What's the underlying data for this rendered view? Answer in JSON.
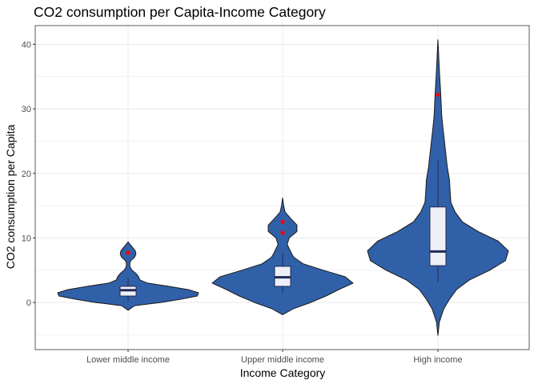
{
  "chart_data": {
    "type": "violin",
    "title": "CO2 consumption per Capita-Income Category",
    "xlabel": "Income Category",
    "ylabel": "CO2 consumption per Capita",
    "ylim": [
      -7.3,
      42.9
    ],
    "yticks": [
      0,
      10,
      20,
      30,
      40
    ],
    "grid": true,
    "categories": [
      "Lower middle income",
      "Upper middle income",
      "High income"
    ],
    "series": [
      {
        "category": "Lower middle income",
        "violin_range": [
          -1.2,
          9.4
        ],
        "density_profile": [
          [
            -1.2,
            0.0
          ],
          [
            -0.5,
            0.5
          ],
          [
            0.0,
            2.5
          ],
          [
            0.5,
            4.0
          ],
          [
            1.0,
            5.3
          ],
          [
            1.5,
            5.4
          ],
          [
            2.0,
            4.6
          ],
          [
            2.5,
            3.1
          ],
          [
            3.0,
            1.5
          ],
          [
            3.5,
            0.9
          ],
          [
            4.0,
            0.8
          ],
          [
            4.5,
            0.6
          ],
          [
            5.0,
            0.3
          ],
          [
            5.5,
            0.15
          ],
          [
            6.0,
            0.12
          ],
          [
            6.5,
            0.2
          ],
          [
            7.0,
            0.5
          ],
          [
            7.5,
            0.6
          ],
          [
            8.0,
            0.55
          ],
          [
            8.5,
            0.35
          ],
          [
            9.0,
            0.15
          ],
          [
            9.4,
            0.0
          ]
        ],
        "box": {
          "q1": 1.0,
          "median": 1.9,
          "q3": 2.5,
          "whisker_low": 0.2,
          "whisker_high": 3.8
        },
        "outliers": [
          7.7
        ]
      },
      {
        "category": "Upper middle income",
        "violin_range": [
          -1.9,
          16.2
        ],
        "density_profile": [
          [
            -1.9,
            0.0
          ],
          [
            -1.0,
            0.2
          ],
          [
            0.0,
            0.55
          ],
          [
            1.0,
            0.85
          ],
          [
            2.0,
            1.1
          ],
          [
            3.0,
            1.38
          ],
          [
            4.0,
            1.22
          ],
          [
            5.0,
            0.8
          ],
          [
            6.0,
            0.4
          ],
          [
            7.0,
            0.22
          ],
          [
            7.5,
            0.18
          ],
          [
            8.0,
            0.15
          ],
          [
            9.0,
            0.09
          ],
          [
            10.0,
            0.13
          ],
          [
            11.0,
            0.28
          ],
          [
            12.0,
            0.28
          ],
          [
            13.0,
            0.16
          ],
          [
            14.0,
            0.05
          ],
          [
            15.0,
            0.02
          ],
          [
            16.2,
            0.0
          ]
        ],
        "box": {
          "q1": 2.5,
          "median": 3.9,
          "q3": 5.6,
          "whisker_low": 1.5,
          "whisker_high": 7.6
        },
        "outliers": [
          10.8,
          12.5
        ]
      },
      {
        "category": "High income",
        "violin_range": [
          -5.1,
          40.7
        ],
        "density_profile": [
          [
            -5.1,
            0.0
          ],
          [
            -3.0,
            0.01
          ],
          [
            -1.0,
            0.04
          ],
          [
            0.5,
            0.08
          ],
          [
            2.0,
            0.13
          ],
          [
            3.5,
            0.22
          ],
          [
            5.0,
            0.36
          ],
          [
            6.5,
            0.47
          ],
          [
            8.0,
            0.49
          ],
          [
            9.5,
            0.42
          ],
          [
            11.0,
            0.28
          ],
          [
            12.5,
            0.17
          ],
          [
            14.0,
            0.12
          ],
          [
            15.5,
            0.09
          ],
          [
            17.0,
            0.085
          ],
          [
            19.0,
            0.08
          ],
          [
            21.0,
            0.065
          ],
          [
            23.0,
            0.055
          ],
          [
            25.0,
            0.045
          ],
          [
            27.0,
            0.035
          ],
          [
            29.0,
            0.026
          ],
          [
            31.0,
            0.022
          ],
          [
            33.0,
            0.018
          ],
          [
            35.0,
            0.012
          ],
          [
            37.0,
            0.008
          ],
          [
            39.0,
            0.004
          ],
          [
            40.7,
            0.0
          ]
        ],
        "box": {
          "q1": 5.7,
          "median": 7.9,
          "q3": 14.8,
          "whisker_low": 3.2,
          "whisker_high": 22.0
        },
        "outliers": [
          32.2
        ]
      }
    ],
    "colors": {
      "violin_fill": "#3060a8",
      "violin_stroke": "#1a1a1a",
      "box_fill": "#eef0f8",
      "box_stroke": "#1f2a55",
      "outlier": "#ff0000",
      "grid": "#ebebeb",
      "panel_border": "#333333"
    }
  }
}
